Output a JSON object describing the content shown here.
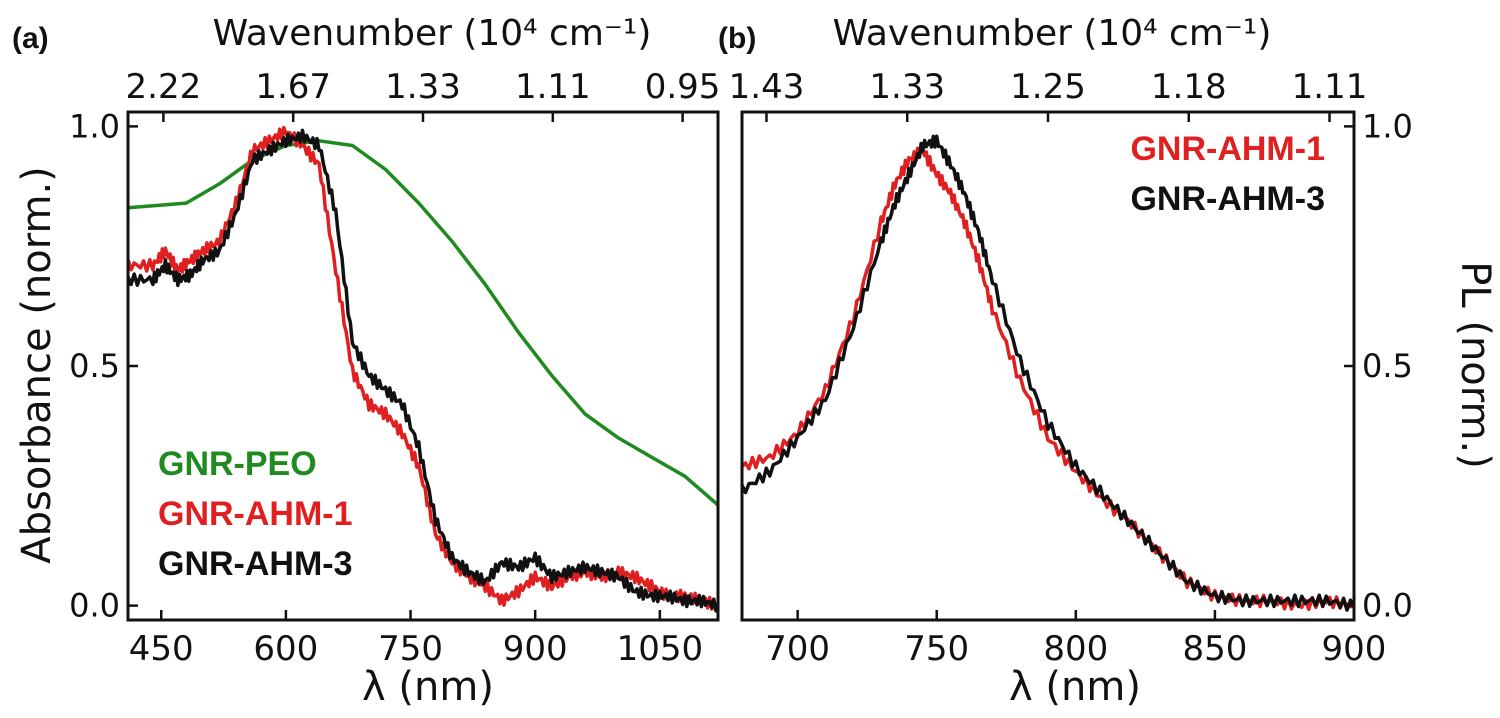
{
  "chart_data": [
    {
      "panel_label": "(a)",
      "type": "line",
      "xlabel": "λ (nm)",
      "ylabel": "Absorbance (norm.)",
      "top_axis_label": "Wavenumber (10⁴ cm⁻¹)",
      "top_ticks": [
        "2.22",
        "1.67",
        "1.33",
        "1.11",
        "0.95"
      ],
      "xlim": [
        410,
        1120
      ],
      "ylim": [
        -0.03,
        1.03
      ],
      "xticks": [
        "450",
        "600",
        "750",
        "900",
        "1050"
      ],
      "yticks": [
        "0.0",
        "0.5",
        "1.0"
      ],
      "legend_position": "bottom-left",
      "series": [
        {
          "name": "GNR-PEO",
          "color": "#1f8a1f",
          "x": [
            410,
            480,
            520,
            560,
            600,
            640,
            680,
            720,
            760,
            800,
            840,
            880,
            920,
            960,
            1000,
            1040,
            1080,
            1120
          ],
          "y": [
            0.83,
            0.84,
            0.88,
            0.93,
            0.96,
            0.97,
            0.96,
            0.91,
            0.84,
            0.76,
            0.67,
            0.57,
            0.48,
            0.4,
            0.35,
            0.31,
            0.27,
            0.21
          ]
        },
        {
          "name": "GNR-AHM-1",
          "color": "#e02020",
          "x": [
            410,
            440,
            455,
            470,
            485,
            500,
            520,
            540,
            560,
            580,
            600,
            620,
            640,
            660,
            680,
            700,
            720,
            740,
            760,
            780,
            800,
            820,
            840,
            860,
            880,
            900,
            920,
            940,
            960,
            980,
            1000,
            1020,
            1040,
            1060,
            1080,
            1100,
            1120
          ],
          "y": [
            0.71,
            0.71,
            0.74,
            0.7,
            0.72,
            0.74,
            0.76,
            0.84,
            0.95,
            0.97,
            0.99,
            0.96,
            0.92,
            0.7,
            0.49,
            0.42,
            0.4,
            0.36,
            0.29,
            0.15,
            0.09,
            0.06,
            0.04,
            0.01,
            0.03,
            0.06,
            0.04,
            0.06,
            0.07,
            0.06,
            0.07,
            0.06,
            0.04,
            0.02,
            0.02,
            0.01,
            0.0
          ]
        },
        {
          "name": "GNR-AHM-3",
          "color": "#111111",
          "x": [
            410,
            440,
            455,
            470,
            485,
            500,
            520,
            540,
            560,
            580,
            600,
            620,
            640,
            660,
            680,
            700,
            720,
            740,
            760,
            780,
            800,
            820,
            840,
            860,
            880,
            900,
            920,
            940,
            960,
            980,
            1000,
            1020,
            1040,
            1060,
            1080,
            1100,
            1120
          ],
          "y": [
            0.68,
            0.68,
            0.71,
            0.68,
            0.69,
            0.72,
            0.74,
            0.82,
            0.93,
            0.95,
            0.97,
            0.98,
            0.96,
            0.82,
            0.55,
            0.48,
            0.45,
            0.42,
            0.33,
            0.18,
            0.1,
            0.07,
            0.05,
            0.09,
            0.08,
            0.1,
            0.06,
            0.07,
            0.08,
            0.07,
            0.06,
            0.03,
            0.02,
            0.02,
            0.01,
            0.01,
            0.0
          ]
        }
      ]
    },
    {
      "panel_label": "(b)",
      "type": "line",
      "xlabel": "λ (nm)",
      "ylabel": "PL (norm.)",
      "top_axis_label": "Wavenumber (10⁴ cm⁻¹)",
      "top_ticks": [
        "1.43",
        "1.33",
        "1.25",
        "1.18",
        "1.11"
      ],
      "xlim": [
        680,
        900
      ],
      "ylim": [
        -0.03,
        1.03
      ],
      "xticks": [
        "700",
        "750",
        "800",
        "850",
        "900"
      ],
      "yticks": [
        "0.0",
        "0.5",
        "1.0"
      ],
      "legend_position": "top-right",
      "series": [
        {
          "name": "GNR-AHM-1",
          "color": "#e02020",
          "x": [
            680,
            690,
            700,
            710,
            720,
            730,
            735,
            740,
            745,
            750,
            755,
            760,
            765,
            770,
            780,
            790,
            800,
            810,
            820,
            830,
            840,
            850,
            860,
            870,
            880,
            890,
            900
          ],
          "y": [
            0.29,
            0.31,
            0.36,
            0.45,
            0.6,
            0.8,
            0.88,
            0.93,
            0.95,
            0.9,
            0.86,
            0.8,
            0.72,
            0.62,
            0.47,
            0.35,
            0.28,
            0.22,
            0.17,
            0.11,
            0.05,
            0.02,
            0.01,
            0.01,
            0.0,
            0.01,
            0.0
          ]
        },
        {
          "name": "GNR-AHM-3",
          "color": "#111111",
          "x": [
            680,
            690,
            700,
            710,
            720,
            730,
            735,
            740,
            745,
            750,
            755,
            760,
            765,
            770,
            780,
            790,
            800,
            810,
            820,
            830,
            840,
            850,
            860,
            870,
            880,
            890,
            900
          ],
          "y": [
            0.24,
            0.28,
            0.35,
            0.43,
            0.58,
            0.76,
            0.84,
            0.9,
            0.96,
            0.97,
            0.92,
            0.86,
            0.78,
            0.68,
            0.51,
            0.38,
            0.29,
            0.23,
            0.17,
            0.11,
            0.05,
            0.02,
            0.01,
            0.01,
            0.01,
            0.01,
            0.0
          ]
        }
      ]
    }
  ]
}
